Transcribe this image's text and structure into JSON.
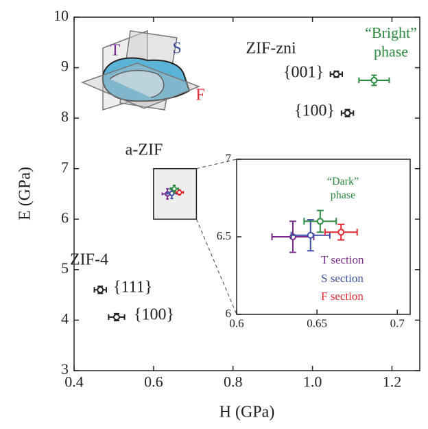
{
  "chart_data": [
    {
      "type": "scatter",
      "x_label": "H (GPa)",
      "y_label": "E (GPa)",
      "xlim": [
        0.4,
        1.27
      ],
      "ylim": [
        3,
        10
      ],
      "xticks": [
        0.4,
        0.6,
        0.8,
        {
          "value": 1,
          "label": "1.0"
        },
        1.2
      ],
      "yticks": [
        3,
        4,
        5,
        6,
        7,
        8,
        9,
        10
      ],
      "annotations": [
        "ZIF-zni",
        "ZIF-4",
        "a-ZIF",
        "T",
        "S",
        "F"
      ],
      "series": [
        {
          "name": "{001}",
          "color": "#222222",
          "x": [
            1.06
          ],
          "values": [
            8.87
          ],
          "xerr": [
            0.015
          ],
          "yerr": [
            0.06
          ]
        },
        {
          "name": "{100}",
          "color": "#222222",
          "x": [
            1.088
          ],
          "values": [
            8.1
          ],
          "xerr": [
            0.015
          ],
          "yerr": [
            0.07
          ]
        },
        {
          "name": "{111}",
          "color": "#222222",
          "x": [
            0.466
          ],
          "values": [
            4.6
          ],
          "xerr": [
            0.015
          ],
          "yerr": [
            0.07
          ]
        },
        {
          "name": "{100}",
          "color": "#222222",
          "x": [
            0.507
          ],
          "values": [
            4.06
          ],
          "xerr": [
            0.02
          ],
          "yerr": [
            0.07
          ]
        },
        {
          "name": "“Bright” phase",
          "color": "#2a8a3e",
          "x": [
            1.155
          ],
          "values": [
            8.75
          ],
          "xerr": [
            0.038
          ],
          "yerr": [
            0.1
          ]
        }
      ]
    },
    {
      "type": "scatter",
      "xlim": [
        0.6,
        0.708
      ],
      "ylim": [
        6,
        7
      ],
      "xticks": [
        0.6,
        0.65,
        0.7
      ],
      "yticks": [
        6,
        6.5,
        7
      ],
      "series": [
        {
          "name": "T section",
          "color": "#7b2d8e",
          "x": [
            0.635
          ],
          "values": [
            6.5
          ],
          "xerr": [
            0.013
          ],
          "yerr": [
            0.1
          ]
        },
        {
          "name": "S section",
          "color": "#3c4fa0",
          "x": [
            0.646
          ],
          "values": [
            6.51
          ],
          "xerr": [
            0.012
          ],
          "yerr": [
            0.1
          ]
        },
        {
          "name": "F section",
          "color": "#e0282e",
          "x": [
            0.665
          ],
          "values": [
            6.53
          ],
          "xerr": [
            0.01
          ],
          "yerr": [
            0.05
          ]
        },
        {
          "name": "“Dark” phase",
          "color": "#2a8a3e",
          "x": [
            0.652
          ],
          "values": [
            6.6
          ],
          "xerr": [
            0.01
          ],
          "yerr": [
            0.07
          ]
        }
      ]
    }
  ]
}
